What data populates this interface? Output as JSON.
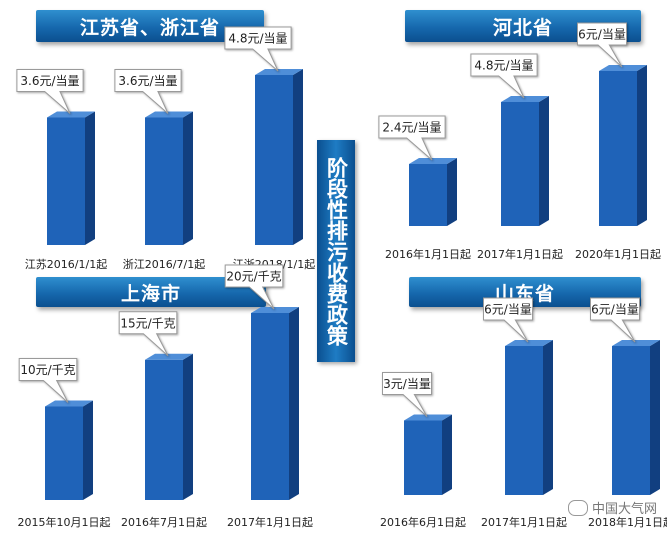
{
  "side_title": "阶段性排污收费政策",
  "watermark": "中国大气网",
  "colors": {
    "bar_front": "#1f63b8",
    "bar_side": "#113f80",
    "bar_top": "#4f8ed8",
    "banner": "#1668ad"
  },
  "chart_data": [
    {
      "type": "bar",
      "title": "江苏省、浙江省",
      "categories": [
        "江苏2016/1/1起",
        "浙江2016/7/1起",
        "江浙2018/1/1起"
      ],
      "values": [
        3.6,
        3.6,
        4.8
      ],
      "labels": [
        "3.6元/当量",
        "3.6元/当量",
        "4.8元/当量"
      ]
    },
    {
      "type": "bar",
      "title": "河北省",
      "categories": [
        "2016年1月1日起",
        "2017年1月1日起",
        "2020年1月1日起"
      ],
      "values": [
        2.4,
        4.8,
        6
      ],
      "labels": [
        "2.4元/当量",
        "4.8元/当量",
        "6元/当量"
      ]
    },
    {
      "type": "bar",
      "title": "上海市",
      "categories": [
        "2015年10月1日起",
        "2016年7月1日起",
        "2017年1月1日起"
      ],
      "values": [
        10,
        15,
        20
      ],
      "labels": [
        "10元/千克",
        "15元/千克",
        "20元/千克"
      ]
    },
    {
      "type": "bar",
      "title": "山东省",
      "categories": [
        "2016年6月1日起",
        "2017年1月1日起",
        "2018年1月1日起"
      ],
      "values": [
        3,
        6,
        6
      ],
      "labels": [
        "3元/当量",
        "6元/当量",
        "6元/当量"
      ]
    }
  ]
}
